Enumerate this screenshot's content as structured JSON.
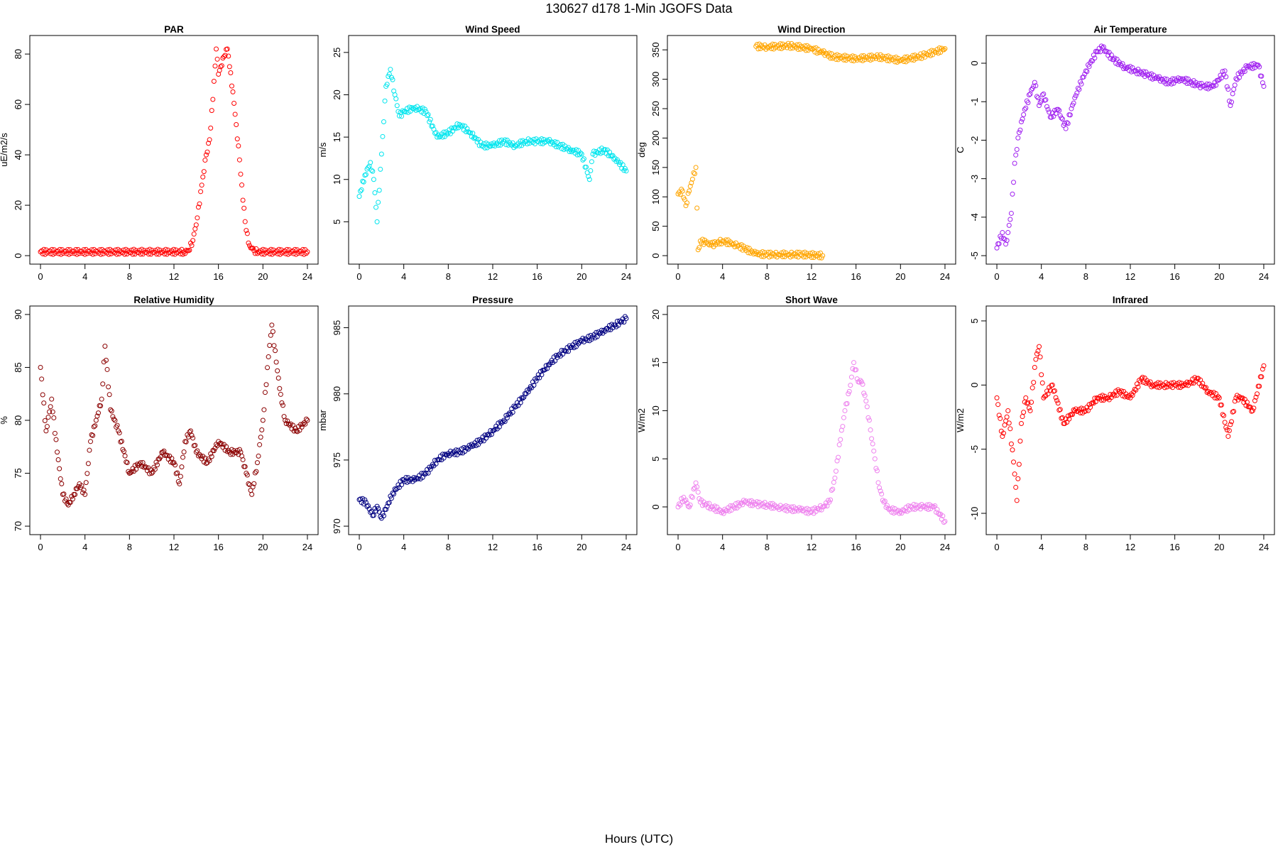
{
  "figure": {
    "title": "130627   d178   1-Min  JGOFS Data",
    "xlabel": "Hours (UTC)"
  },
  "chart_data": [
    {
      "type": "scatter",
      "title": "PAR",
      "xlabel": "",
      "ylabel": "uE/m2/s",
      "color": "#ff0000",
      "xlim": [
        0,
        24
      ],
      "ylim": [
        0,
        84
      ],
      "xticks": [
        0,
        4,
        8,
        12,
        16,
        20,
        24
      ],
      "yticks": [
        0,
        20,
        40,
        60,
        80
      ],
      "grid": false,
      "x": [
        0,
        12.9,
        13.3,
        13.7,
        14.1,
        14.5,
        14.9,
        15.2,
        15.5,
        15.8,
        16.0,
        16.2,
        16.5,
        16.8,
        17.0,
        17.3,
        17.6,
        17.9,
        18.2,
        18.5,
        18.8,
        19.2,
        19.6,
        24
      ],
      "y": [
        1.5,
        1.5,
        2,
        6,
        15,
        28,
        40,
        46,
        62,
        82,
        72,
        75,
        79,
        82,
        75,
        65,
        52,
        38,
        22,
        10,
        4,
        2,
        1.5,
        1.5
      ]
    },
    {
      "type": "scatter",
      "title": "Wind Speed",
      "xlabel": "",
      "ylabel": "m/s",
      "color": "#00e5ee",
      "xlim": [
        0,
        24
      ],
      "ylim": [
        1,
        26
      ],
      "xticks": [
        0,
        4,
        8,
        12,
        16,
        20,
        24
      ],
      "yticks": [
        5,
        10,
        15,
        20,
        25
      ],
      "grid": false,
      "x": [
        0,
        0.5,
        1.0,
        1.3,
        1.6,
        2.0,
        2.4,
        2.8,
        3.2,
        3.6,
        4,
        5,
        6,
        7,
        8,
        9,
        10,
        11,
        12,
        13,
        14,
        15,
        16,
        17,
        18,
        19,
        20,
        20.7,
        21,
        22,
        23,
        24
      ],
      "y": [
        8,
        10.5,
        12,
        10,
        5,
        13,
        21,
        23,
        20,
        17.5,
        18,
        18.5,
        18,
        15,
        15.5,
        16.5,
        15.5,
        14,
        14,
        14.5,
        14,
        14.5,
        14.5,
        14.5,
        14,
        13.5,
        13,
        10,
        13,
        13.5,
        12.5,
        11
      ]
    },
    {
      "type": "scatter",
      "title": "Wind Direction",
      "xlabel": "",
      "ylabel": "deg",
      "color": "#ffa500",
      "xlim": [
        0,
        24
      ],
      "ylim": [
        0,
        360
      ],
      "xticks": [
        0,
        4,
        8,
        12,
        16,
        20,
        24
      ],
      "yticks": [
        0,
        50,
        100,
        150,
        200,
        250,
        300,
        350
      ],
      "grid": false,
      "x": [
        0,
        0.4,
        0.7,
        1.0,
        1.3,
        1.6,
        1.8,
        2.0,
        2.5,
        3,
        4,
        5,
        6,
        7,
        8,
        9,
        10,
        11,
        13,
        7.0,
        8,
        10,
        12,
        13,
        14,
        16,
        18,
        20,
        22,
        24
      ],
      "y": [
        105,
        110,
        85,
        110,
        130,
        150,
        10,
        25,
        22,
        18,
        25,
        20,
        12,
        3,
        2,
        2,
        2,
        2,
        0,
        356,
        355,
        357,
        352,
        345,
        338,
        335,
        338,
        332,
        340,
        352
      ]
    },
    {
      "type": "scatter",
      "title": "Air Temperature",
      "xlabel": "",
      "ylabel": "C",
      "color": "#a020f0",
      "xlim": [
        0,
        24
      ],
      "ylim": [
        -5,
        0.5
      ],
      "xticks": [
        0,
        4,
        8,
        12,
        16,
        20,
        24
      ],
      "yticks": [
        -5,
        -4,
        -3,
        -2,
        -1,
        0
      ],
      "grid": false,
      "x": [
        0,
        0.5,
        0.8,
        1.0,
        1.3,
        1.6,
        2.0,
        2.5,
        3.0,
        3.4,
        3.8,
        4.2,
        4.8,
        5.5,
        6.2,
        7,
        8,
        9,
        9.5,
        10.5,
        11.5,
        12.5,
        13.5,
        14.5,
        15.5,
        16.5,
        17.5,
        18.5,
        19.5,
        20.5,
        21,
        21.5,
        22.5,
        23.5,
        24
      ],
      "y": [
        -4.8,
        -4.4,
        -4.7,
        -4.4,
        -3.9,
        -2.6,
        -1.8,
        -1.2,
        -0.8,
        -0.5,
        -1.1,
        -0.8,
        -1.4,
        -1.2,
        -1.7,
        -0.9,
        -0.2,
        0.3,
        0.4,
        0.1,
        -0.1,
        -0.2,
        -0.3,
        -0.4,
        -0.5,
        -0.4,
        -0.5,
        -0.6,
        -0.6,
        -0.2,
        -1.1,
        -0.4,
        -0.1,
        -0.05,
        -0.6
      ]
    },
    {
      "type": "scatter",
      "title": "Relative Humidity",
      "xlabel": "",
      "ylabel": "%",
      "color": "#8b0000",
      "xlim": [
        0,
        24
      ],
      "ylim": [
        70,
        90
      ],
      "xticks": [
        0,
        4,
        8,
        12,
        16,
        20,
        24
      ],
      "yticks": [
        70,
        75,
        80,
        85,
        90
      ],
      "grid": false,
      "x": [
        0,
        0.5,
        1.0,
        1.5,
        2.0,
        2.5,
        3.0,
        3.5,
        4.0,
        4.5,
        5.0,
        5.5,
        5.8,
        6.3,
        7,
        8,
        9,
        10,
        11,
        12,
        12.5,
        13,
        13.5,
        14,
        15,
        16,
        17,
        18,
        18.5,
        19,
        19.5,
        20,
        20.5,
        20.8,
        21.5,
        22,
        23,
        24
      ],
      "y": [
        85,
        79,
        82,
        77,
        73,
        72,
        73,
        74,
        73,
        78,
        80,
        82,
        87,
        81,
        79,
        75,
        76,
        75,
        77,
        76,
        74,
        78,
        79,
        77,
        76,
        78,
        77,
        77,
        75,
        73,
        76,
        80,
        86,
        89,
        83,
        80,
        79,
        80
      ]
    },
    {
      "type": "scatter",
      "title": "Pressure",
      "xlabel": "",
      "ylabel": "mbar",
      "color": "#000080",
      "xlim": [
        0,
        24
      ],
      "ylim": [
        970,
        986
      ],
      "xticks": [
        0,
        4,
        8,
        12,
        16,
        20,
        24
      ],
      "yticks": [
        970,
        975,
        980,
        985
      ],
      "grid": false,
      "x": [
        0,
        0.6,
        1.2,
        1.6,
        2.0,
        2.5,
        3,
        4,
        5,
        6,
        7,
        8,
        9,
        10,
        11,
        12,
        13,
        14,
        15,
        16,
        17,
        18,
        19,
        20,
        21,
        22,
        23,
        24
      ],
      "y": [
        972,
        971.8,
        970.8,
        971.5,
        970.6,
        971.5,
        972.5,
        973.5,
        973.5,
        974,
        975,
        975.5,
        975.6,
        976,
        976.5,
        977.2,
        978,
        979,
        980,
        981.2,
        982.2,
        983,
        983.5,
        984,
        984.3,
        984.8,
        985.2,
        985.7
      ]
    },
    {
      "type": "scatter",
      "title": "Short Wave",
      "xlabel": "",
      "ylabel": "W/m2",
      "color": "#ee82ee",
      "xlim": [
        0,
        24
      ],
      "ylim": [
        -2,
        20
      ],
      "xticks": [
        0,
        4,
        8,
        12,
        16,
        20,
        24
      ],
      "yticks": [
        0,
        5,
        10,
        15,
        20
      ],
      "grid": false,
      "x": [
        0,
        0.5,
        1.0,
        1.6,
        2.0,
        3,
        4,
        5,
        6,
        7,
        8,
        9,
        10,
        11,
        12,
        13,
        13.6,
        14.1,
        14.6,
        15.0,
        15.4,
        15.8,
        16.2,
        16.5,
        16.9,
        17.3,
        17.7,
        18.1,
        18.5,
        19,
        20,
        21,
        22,
        23,
        24
      ],
      "y": [
        0,
        1,
        0,
        2.5,
        0.5,
        0,
        -0.5,
        0,
        0.5,
        0.3,
        0.2,
        0,
        -0.2,
        -0.3,
        -0.5,
        0,
        0.5,
        3,
        7,
        10,
        12,
        15,
        13,
        13,
        11,
        8,
        5,
        2,
        0.5,
        -0.3,
        -0.5,
        0,
        0,
        0,
        -1.5
      ]
    },
    {
      "type": "scatter",
      "title": "Infrared",
      "xlabel": "",
      "ylabel": "W/m2",
      "color": "#ff0000",
      "xlim": [
        0,
        24
      ],
      "ylim": [
        -11,
        5.5
      ],
      "xticks": [
        0,
        4,
        8,
        12,
        16,
        20,
        24
      ],
      "yticks": [
        -10,
        -5,
        0,
        5
      ],
      "grid": false,
      "x": [
        0,
        0.5,
        1.0,
        1.5,
        1.8,
        2.2,
        2.6,
        3.0,
        3.5,
        3.8,
        4.2,
        5,
        6,
        7,
        8,
        9,
        10,
        11,
        12,
        13,
        14,
        15,
        16,
        17,
        18,
        19,
        20,
        20.8,
        21.5,
        22,
        23,
        24
      ],
      "y": [
        -1,
        -4,
        -2,
        -6,
        -9,
        -3,
        -1,
        -2,
        2,
        3,
        -1,
        0,
        -3,
        -2,
        -2,
        -1,
        -1,
        -0.5,
        -1,
        0.5,
        0,
        0,
        0,
        0,
        0.5,
        -0.5,
        -1,
        -4,
        -1,
        -1,
        -2,
        1.5
      ]
    }
  ]
}
